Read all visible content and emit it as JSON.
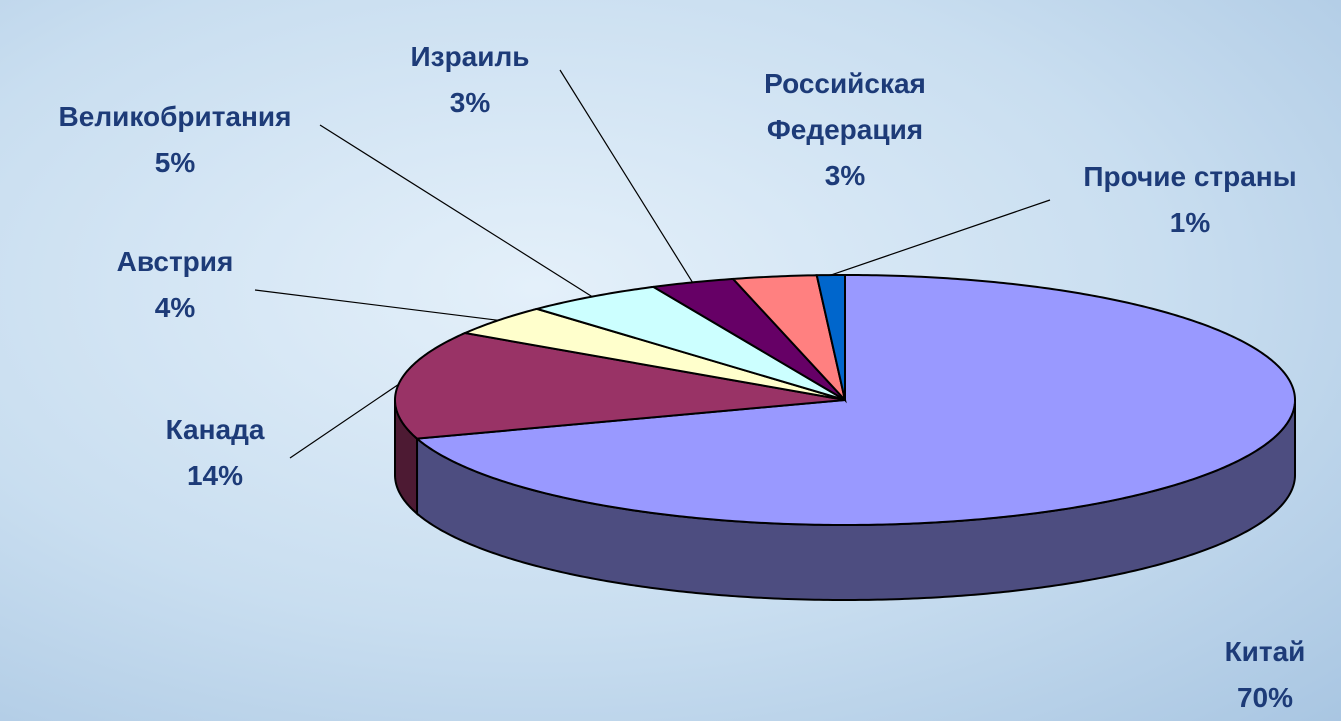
{
  "chart_data": {
    "type": "pie",
    "categories": [
      "Китай",
      "Канада",
      "Австрия",
      "Великобритания",
      "Израиль",
      "Российская Федерация",
      "Прочие страны"
    ],
    "values": [
      70,
      14,
      4,
      5,
      3,
      3,
      1
    ],
    "value_labels": [
      "70%",
      "14%",
      "4%",
      "5%",
      "3%",
      "3%",
      "1%"
    ],
    "colors": [
      "#9999ff",
      "#993366",
      "#ffffcc",
      "#ccffff",
      "#660066",
      "#ff8080",
      "#0066cc"
    ]
  }
}
